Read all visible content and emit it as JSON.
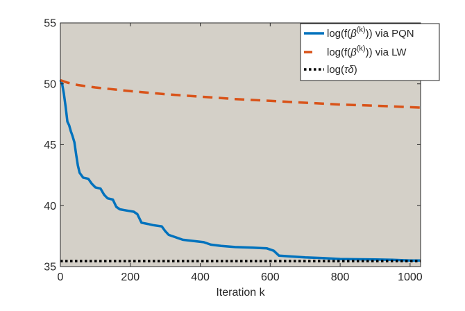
{
  "chart_data": {
    "type": "line",
    "title": "",
    "xlabel": "Iteration k",
    "ylabel": "",
    "xlim": [
      0,
      1030
    ],
    "ylim": [
      35,
      55
    ],
    "xticks": [
      0,
      200,
      400,
      600,
      800,
      1000
    ],
    "yticks": [
      35,
      40,
      45,
      50,
      55
    ],
    "grid": false,
    "plot_background": "#d4d0c8",
    "legend_placement": "top-right",
    "series": [
      {
        "name": "log(f(β(k))) via PQN",
        "name_parts": {
          "prefix": "log(f(",
          "symbol": "β",
          "sup": "(k)",
          "suffix": ")) via PQN"
        },
        "color": "#0072bd",
        "style": "solid",
        "points": [
          [
            0,
            50.3
          ],
          [
            5,
            50.0
          ],
          [
            10,
            49.2
          ],
          [
            15,
            48.1
          ],
          [
            20,
            46.9
          ],
          [
            25,
            46.6
          ],
          [
            30,
            46.1
          ],
          [
            35,
            45.7
          ],
          [
            40,
            45.2
          ],
          [
            45,
            44.2
          ],
          [
            50,
            43.3
          ],
          [
            55,
            42.7
          ],
          [
            65,
            42.3
          ],
          [
            80,
            42.2
          ],
          [
            90,
            41.8
          ],
          [
            100,
            41.5
          ],
          [
            115,
            41.4
          ],
          [
            125,
            40.9
          ],
          [
            135,
            40.6
          ],
          [
            150,
            40.5
          ],
          [
            160,
            39.9
          ],
          [
            170,
            39.7
          ],
          [
            190,
            39.6
          ],
          [
            210,
            39.5
          ],
          [
            220,
            39.3
          ],
          [
            232,
            38.6
          ],
          [
            250,
            38.5
          ],
          [
            265,
            38.4
          ],
          [
            290,
            38.3
          ],
          [
            300,
            37.9
          ],
          [
            310,
            37.6
          ],
          [
            330,
            37.4
          ],
          [
            350,
            37.2
          ],
          [
            380,
            37.1
          ],
          [
            410,
            37.0
          ],
          [
            430,
            36.8
          ],
          [
            460,
            36.7
          ],
          [
            500,
            36.6
          ],
          [
            550,
            36.55
          ],
          [
            590,
            36.5
          ],
          [
            610,
            36.3
          ],
          [
            625,
            35.9
          ],
          [
            650,
            35.85
          ],
          [
            700,
            35.75
          ],
          [
            750,
            35.7
          ],
          [
            800,
            35.62
          ],
          [
            900,
            35.58
          ],
          [
            950,
            35.55
          ],
          [
            1000,
            35.5
          ],
          [
            1030,
            35.5
          ]
        ]
      },
      {
        "name": "log(f(β(k))) via LW",
        "name_parts": {
          "prefix": "log(f(",
          "symbol": "β",
          "sup": "(k)",
          "suffix": ")) via LW"
        },
        "color": "#d95319",
        "style": "dashed",
        "points": [
          [
            0,
            50.3
          ],
          [
            20,
            50.1
          ],
          [
            50,
            49.9
          ],
          [
            100,
            49.7
          ],
          [
            200,
            49.4
          ],
          [
            300,
            49.15
          ],
          [
            400,
            48.95
          ],
          [
            500,
            48.75
          ],
          [
            600,
            48.6
          ],
          [
            700,
            48.45
          ],
          [
            800,
            48.3
          ],
          [
            900,
            48.2
          ],
          [
            1030,
            48.05
          ]
        ]
      },
      {
        "name": "log(τδ)",
        "name_parts": {
          "prefix": "log(",
          "symbol": "τδ",
          "sup": "",
          "suffix": ")"
        },
        "color": "#000000",
        "style": "dotted",
        "points": [
          [
            0,
            35.45
          ],
          [
            1030,
            35.45
          ]
        ]
      }
    ]
  }
}
